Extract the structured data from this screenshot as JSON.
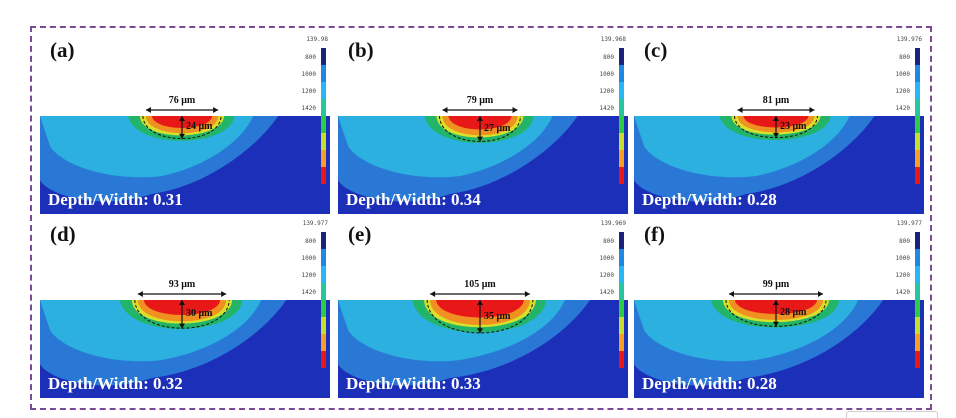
{
  "figure": {
    "panels": [
      {
        "label": "(a)",
        "width_text": "76 μm",
        "depth_text": "24 μm",
        "ratio_text": "Depth/Width: 0.31",
        "colorbar_max": "139.98",
        "colorbar_ticks": [
          "800",
          "1000",
          "1200",
          "1420",
          "",
          "",
          "",
          ""
        ],
        "width_um": 76,
        "depth_um": 24
      },
      {
        "label": "(b)",
        "width_text": "79 μm",
        "depth_text": "27 μm",
        "ratio_text": "Depth/Width: 0.34",
        "colorbar_max": "139.968",
        "colorbar_ticks": [
          "800",
          "1000",
          "1200",
          "1420",
          "",
          "",
          "",
          ""
        ],
        "width_um": 79,
        "depth_um": 27
      },
      {
        "label": "(c)",
        "width_text": "81 μm",
        "depth_text": "23 μm",
        "ratio_text": "Depth/Width: 0.28",
        "colorbar_max": "139.976",
        "colorbar_ticks": [
          "800",
          "1000",
          "1200",
          "1420",
          "",
          "",
          "",
          ""
        ],
        "width_um": 81,
        "depth_um": 23
      },
      {
        "label": "(d)",
        "width_text": "93 μm",
        "depth_text": "30 μm",
        "ratio_text": "Depth/Width: 0.32",
        "colorbar_max": "139.977",
        "colorbar_ticks": [
          "800",
          "1000",
          "1200",
          "1420",
          "",
          "",
          "",
          ""
        ],
        "width_um": 93,
        "depth_um": 30
      },
      {
        "label": "(e)",
        "width_text": "105 μm",
        "depth_text": "35 μm",
        "ratio_text": "Depth/Width: 0.33",
        "colorbar_max": "139.969",
        "colorbar_ticks": [
          "800",
          "1000",
          "1200",
          "1420",
          "",
          "",
          "",
          ""
        ],
        "width_um": 105,
        "depth_um": 35
      },
      {
        "label": "(f)",
        "width_text": "99 μm",
        "depth_text": "28 μm",
        "ratio_text": "Depth/Width: 0.28",
        "colorbar_max": "139.977",
        "colorbar_ticks": [
          "800",
          "1000",
          "1200",
          "1420",
          "",
          "",
          "",
          ""
        ],
        "width_um": 99,
        "depth_um": 28
      }
    ],
    "colors": {
      "substrate": "#1c2fb8",
      "zone1": "#2a78d6",
      "zone2": "#2bb0e0",
      "zone3": "#22b56a",
      "zone4": "#d8e02a",
      "zone5": "#f09020",
      "pool": "#e81818",
      "frame": "#7a4a96"
    },
    "colorbar_colors": [
      "#1a237e",
      "#1e88e5",
      "#29b6f6",
      "#26c6a0",
      "#2ecc40",
      "#c6e02a",
      "#f5a020",
      "#e81818"
    ]
  }
}
